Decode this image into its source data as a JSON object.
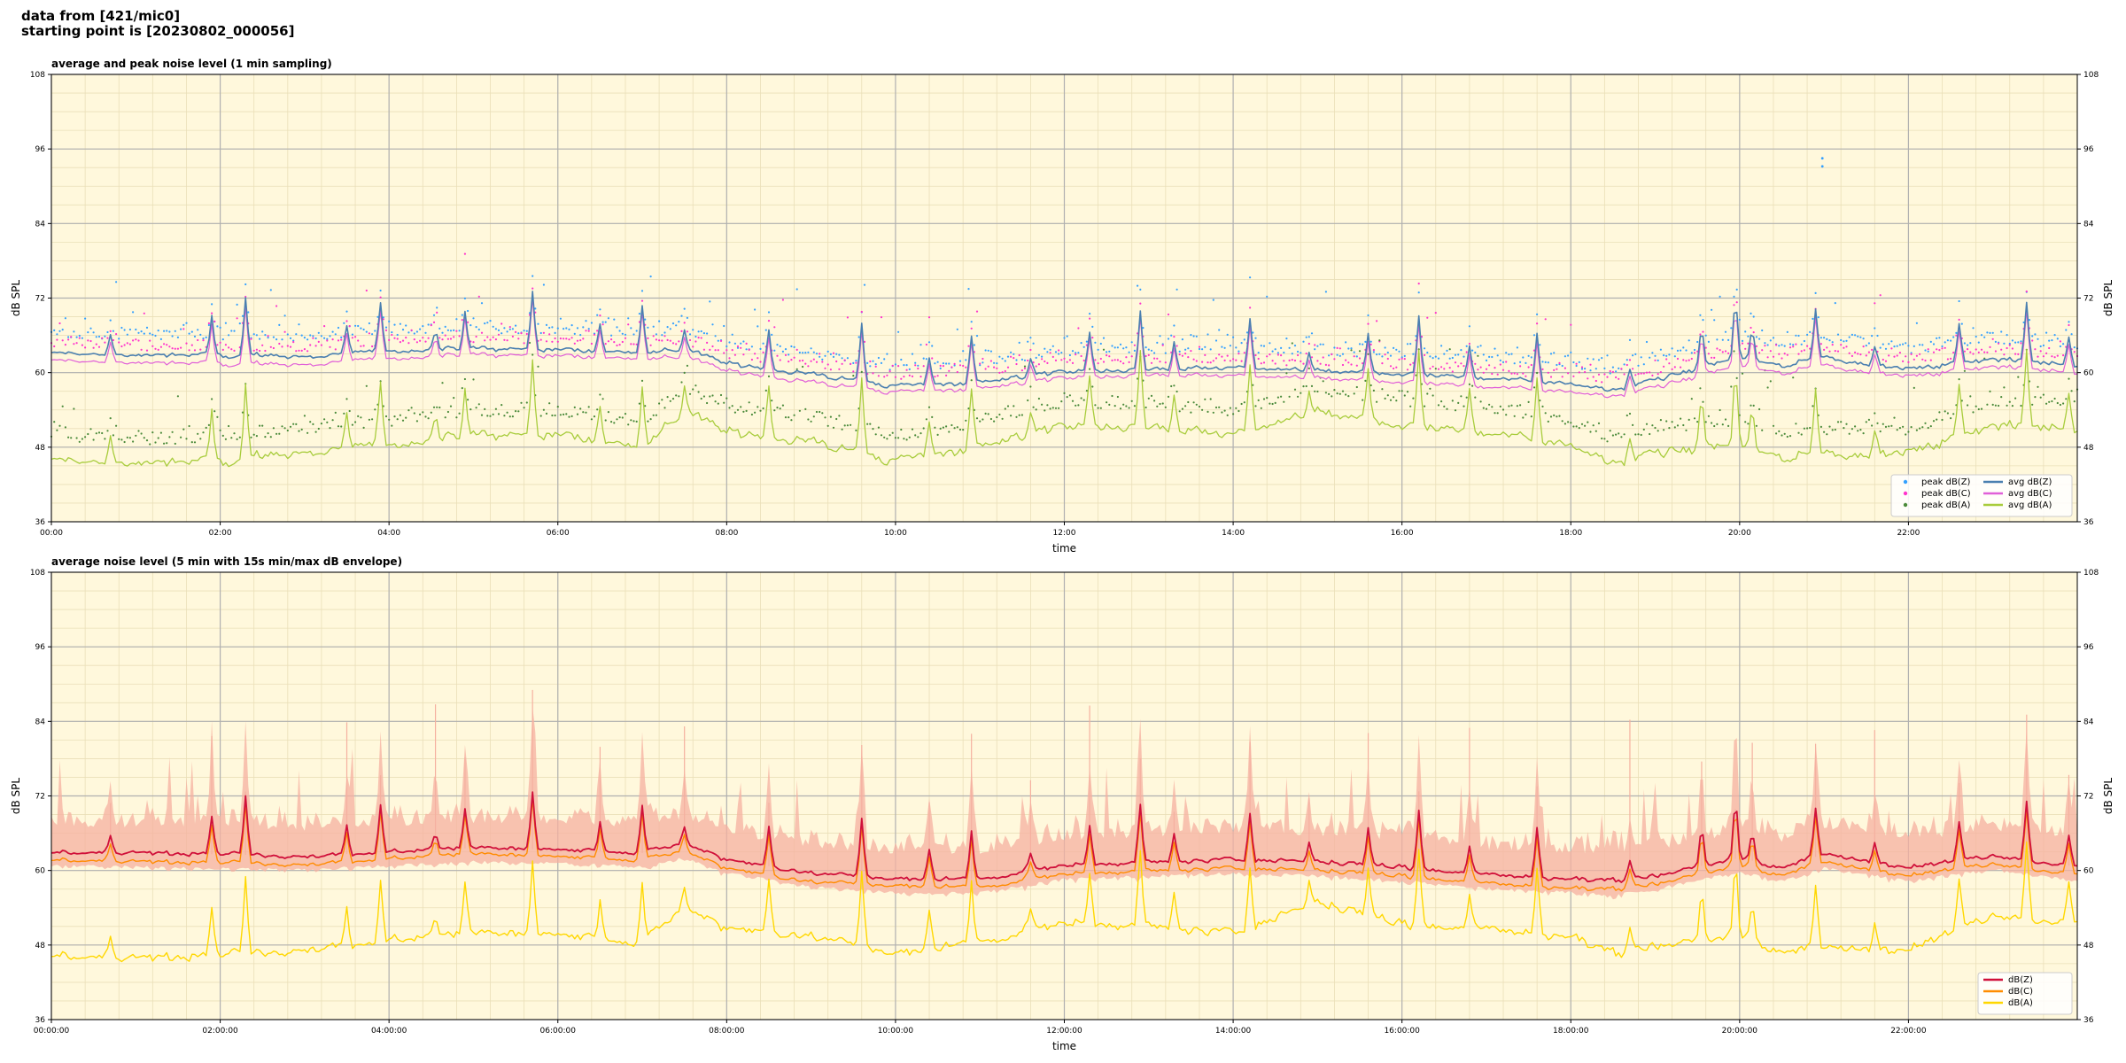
{
  "header": {
    "line1": "data from [421/mic0]",
    "line2": "starting point is [20230802_000056]"
  },
  "colors": {
    "background": "#fff8dc",
    "grid_major": "#b0b0b0",
    "grid_minor": "#eadfb8",
    "avg_z": "#4a7fb0",
    "avg_c": "#e05fd8",
    "avg_a": "#a8cc3c",
    "peak_z": "#33a0ff",
    "peak_c": "#ff33cc",
    "peak_a": "#4a8a3a",
    "db_z": "#d0103a",
    "db_c": "#ff8c00",
    "db_a": "#ffd700",
    "envelope": "#f5b0a0"
  },
  "chart_data": [
    {
      "type": "line",
      "title": "average and peak noise level (1 min sampling)",
      "xlabel": "time",
      "ylabel": "dB SPL",
      "xlim_hours": [
        0,
        24
      ],
      "ylim": [
        36,
        108
      ],
      "yticks": [
        36,
        48,
        60,
        72,
        84,
        96,
        108
      ],
      "xtick_hours": [
        0,
        2,
        4,
        6,
        8,
        10,
        12,
        14,
        16,
        18,
        20,
        22
      ],
      "xtick_labels": [
        "00:00",
        "02:00",
        "04:00",
        "06:00",
        "08:00",
        "10:00",
        "12:00",
        "14:00",
        "16:00",
        "18:00",
        "20:00",
        "22:00"
      ],
      "grid": true,
      "legend_position": "bottom-right",
      "legend_columns": 2,
      "legend": [
        {
          "label": "peak dB(Z)",
          "kind": "dot",
          "color": "#33a0ff"
        },
        {
          "label": "peak dB(C)",
          "kind": "dot",
          "color": "#ff33cc"
        },
        {
          "label": "peak dB(A)",
          "kind": "dot",
          "color": "#4a8a3a"
        },
        {
          "label": "avg dB(Z)",
          "kind": "line",
          "color": "#4a7fb0"
        },
        {
          "label": "avg dB(C)",
          "kind": "line",
          "color": "#e05fd8"
        },
        {
          "label": "avg dB(A)",
          "kind": "line",
          "color": "#a8cc3c"
        }
      ],
      "series": [
        {
          "name": "avg dB(Z)",
          "kind": "line",
          "color": "#4a7fb0",
          "width": 1.6,
          "x": [
            0,
            1,
            2,
            3,
            4,
            5,
            6,
            7,
            7.5,
            8,
            9,
            10,
            11,
            12,
            13,
            14,
            15,
            16,
            17,
            18,
            18.5,
            19,
            20,
            20.5,
            21,
            22,
            23,
            24
          ],
          "y": [
            63.2,
            62.8,
            62.8,
            62.6,
            63.5,
            63.8,
            63.7,
            63.2,
            63.8,
            61.5,
            59.8,
            57.8,
            58.5,
            60.2,
            60.4,
            60.8,
            60.2,
            59.8,
            59.2,
            58.3,
            57.2,
            58.8,
            62.5,
            61.2,
            62.5,
            60.5,
            62.2,
            61.2
          ]
        },
        {
          "name": "avg dB(C)",
          "kind": "line",
          "color": "#e05fd8",
          "width": 1.2,
          "x": [
            0,
            1,
            2,
            3,
            4,
            5,
            6,
            7,
            7.5,
            8,
            9,
            10,
            11,
            12,
            13,
            14,
            15,
            16,
            17,
            18,
            18.5,
            19,
            20,
            20.5,
            21,
            22,
            23,
            24
          ],
          "y": [
            62.0,
            61.6,
            61.4,
            61.3,
            62.3,
            62.8,
            62.7,
            62.2,
            62.6,
            60.3,
            58.5,
            56.8,
            57.5,
            59.2,
            59.5,
            59.5,
            59.0,
            58.5,
            57.8,
            57.0,
            56.2,
            57.6,
            61.2,
            60.0,
            61.2,
            59.3,
            61.0,
            60.0
          ]
        },
        {
          "name": "avg dB(A)",
          "kind": "line",
          "color": "#a8cc3c",
          "width": 1.3,
          "x": [
            0,
            1,
            2,
            3,
            4,
            5,
            6,
            7,
            7.5,
            8,
            9,
            10,
            11,
            12,
            13,
            14,
            15,
            16,
            17,
            18,
            18.5,
            19,
            20,
            20.5,
            21,
            22,
            23,
            24
          ],
          "y": [
            46.0,
            45.4,
            45.7,
            47.2,
            48.4,
            49.8,
            50.0,
            48.0,
            53.8,
            50.5,
            49.0,
            45.7,
            48.2,
            51.5,
            51.0,
            50.0,
            53.5,
            51.5,
            50.5,
            48.5,
            45.5,
            47.0,
            48.5,
            46.5,
            47.0,
            47.0,
            51.5,
            51.0
          ]
        },
        {
          "name": "peak dB(Z)",
          "kind": "dots",
          "color": "#33a0ff",
          "offset": 2.5
        },
        {
          "name": "peak dB(C)",
          "kind": "dots",
          "color": "#ff33cc",
          "offset": 2.0
        },
        {
          "name": "peak dB(A)",
          "kind": "dots",
          "color": "#4a8a3a",
          "offset": 3.0
        }
      ],
      "spikes_hours": [
        0.7,
        1.9,
        2.3,
        3.5,
        3.9,
        4.55,
        4.9,
        5.7,
        6.5,
        7.0,
        7.5,
        8.5,
        9.6,
        10.4,
        10.9,
        11.6,
        12.3,
        12.9,
        13.3,
        14.2,
        14.9,
        15.6,
        16.2,
        16.8,
        17.6,
        18.7,
        19.55,
        19.95,
        20.15,
        20.9,
        21.6,
        22.6,
        23.4,
        23.9
      ],
      "spike_peak_db": 70
    },
    {
      "type": "line",
      "title": "average noise level (5 min with 15s min/max dB envelope)",
      "xlabel": "time",
      "ylabel": "dB SPL",
      "xlim_hours": [
        0,
        24
      ],
      "ylim": [
        36,
        108
      ],
      "yticks": [
        36,
        48,
        60,
        72,
        84,
        96,
        108
      ],
      "xtick_hours": [
        0,
        2,
        4,
        6,
        8,
        10,
        12,
        14,
        16,
        18,
        20,
        22
      ],
      "xtick_labels": [
        "00:00:00",
        "02:00:00",
        "04:00:00",
        "06:00:00",
        "08:00:00",
        "10:00:00",
        "12:00:00",
        "14:00:00",
        "16:00:00",
        "18:00:00",
        "20:00:00",
        "22:00:00"
      ],
      "grid": true,
      "legend_position": "bottom-right",
      "legend_columns": 1,
      "legend": [
        {
          "label": "dB(Z)",
          "kind": "line",
          "color": "#d0103a"
        },
        {
          "label": "dB(C)",
          "kind": "line",
          "color": "#ff8c00"
        },
        {
          "label": "dB(A)",
          "kind": "line",
          "color": "#ffd700"
        }
      ],
      "series": [
        {
          "name": "dB(Z)",
          "kind": "line",
          "color": "#d0103a",
          "width": 1.8,
          "x": [
            0,
            1,
            2,
            3,
            4,
            5,
            6,
            7,
            7.5,
            8,
            9,
            10,
            11,
            12,
            13,
            14,
            15,
            16,
            17,
            18,
            18.5,
            19,
            20,
            20.5,
            21,
            22,
            23,
            24
          ],
          "y": [
            63.0,
            62.8,
            62.6,
            62.3,
            63.0,
            63.6,
            63.4,
            62.8,
            64.2,
            61.8,
            59.6,
            58.6,
            58.6,
            60.8,
            61.3,
            61.8,
            61.4,
            60.6,
            59.3,
            58.7,
            58.3,
            59.2,
            62.0,
            60.5,
            62.6,
            60.6,
            62.4,
            60.6
          ]
        },
        {
          "name": "dB(C)",
          "kind": "line",
          "color": "#ff8c00",
          "width": 1.4,
          "x": [
            0,
            1,
            2,
            3,
            4,
            5,
            6,
            7,
            7.5,
            8,
            9,
            10,
            11,
            12,
            13,
            14,
            15,
            16,
            17,
            18,
            18.5,
            19,
            20,
            20.5,
            21,
            22,
            23,
            24
          ],
          "y": [
            61.8,
            61.4,
            61.2,
            61.0,
            61.9,
            62.6,
            62.3,
            61.6,
            63.0,
            60.4,
            58.2,
            57.5,
            57.3,
            59.4,
            59.9,
            60.4,
            60.0,
            59.2,
            57.9,
            57.2,
            56.9,
            57.9,
            60.8,
            59.3,
            61.3,
            59.3,
            61.1,
            59.3
          ]
        },
        {
          "name": "dB(A)",
          "kind": "line",
          "color": "#ffd700",
          "width": 1.4,
          "x": [
            0,
            1,
            2,
            3,
            4,
            5,
            6,
            7,
            7.5,
            8,
            9,
            10,
            11,
            12,
            13,
            14,
            15,
            16,
            17,
            18,
            18.5,
            19,
            20,
            20.5,
            21,
            22,
            23,
            24
          ],
          "y": [
            46.5,
            45.8,
            46.3,
            47.3,
            48.8,
            49.8,
            49.8,
            48.2,
            53.8,
            50.8,
            49.5,
            46.5,
            48.5,
            51.5,
            51.0,
            50.0,
            54.8,
            51.5,
            50.5,
            49.5,
            46.5,
            48.0,
            49.5,
            47.0,
            47.5,
            47.5,
            52.8,
            51.5
          ]
        }
      ],
      "envelope": {
        "name": "min/max dB",
        "color": "#f5b0a0",
        "low_offset": -2.0,
        "high_offset": 4.0
      },
      "spikes_hours": [
        0.7,
        1.9,
        2.3,
        3.5,
        3.9,
        4.55,
        4.9,
        5.7,
        6.5,
        7.0,
        7.5,
        8.5,
        9.6,
        10.4,
        10.9,
        11.6,
        12.3,
        12.9,
        13.3,
        14.2,
        14.9,
        15.6,
        16.2,
        16.8,
        17.6,
        18.7,
        19.55,
        19.95,
        20.15,
        20.9,
        21.6,
        22.6,
        23.4,
        23.9
      ],
      "spike_peak_db": 88
    }
  ]
}
